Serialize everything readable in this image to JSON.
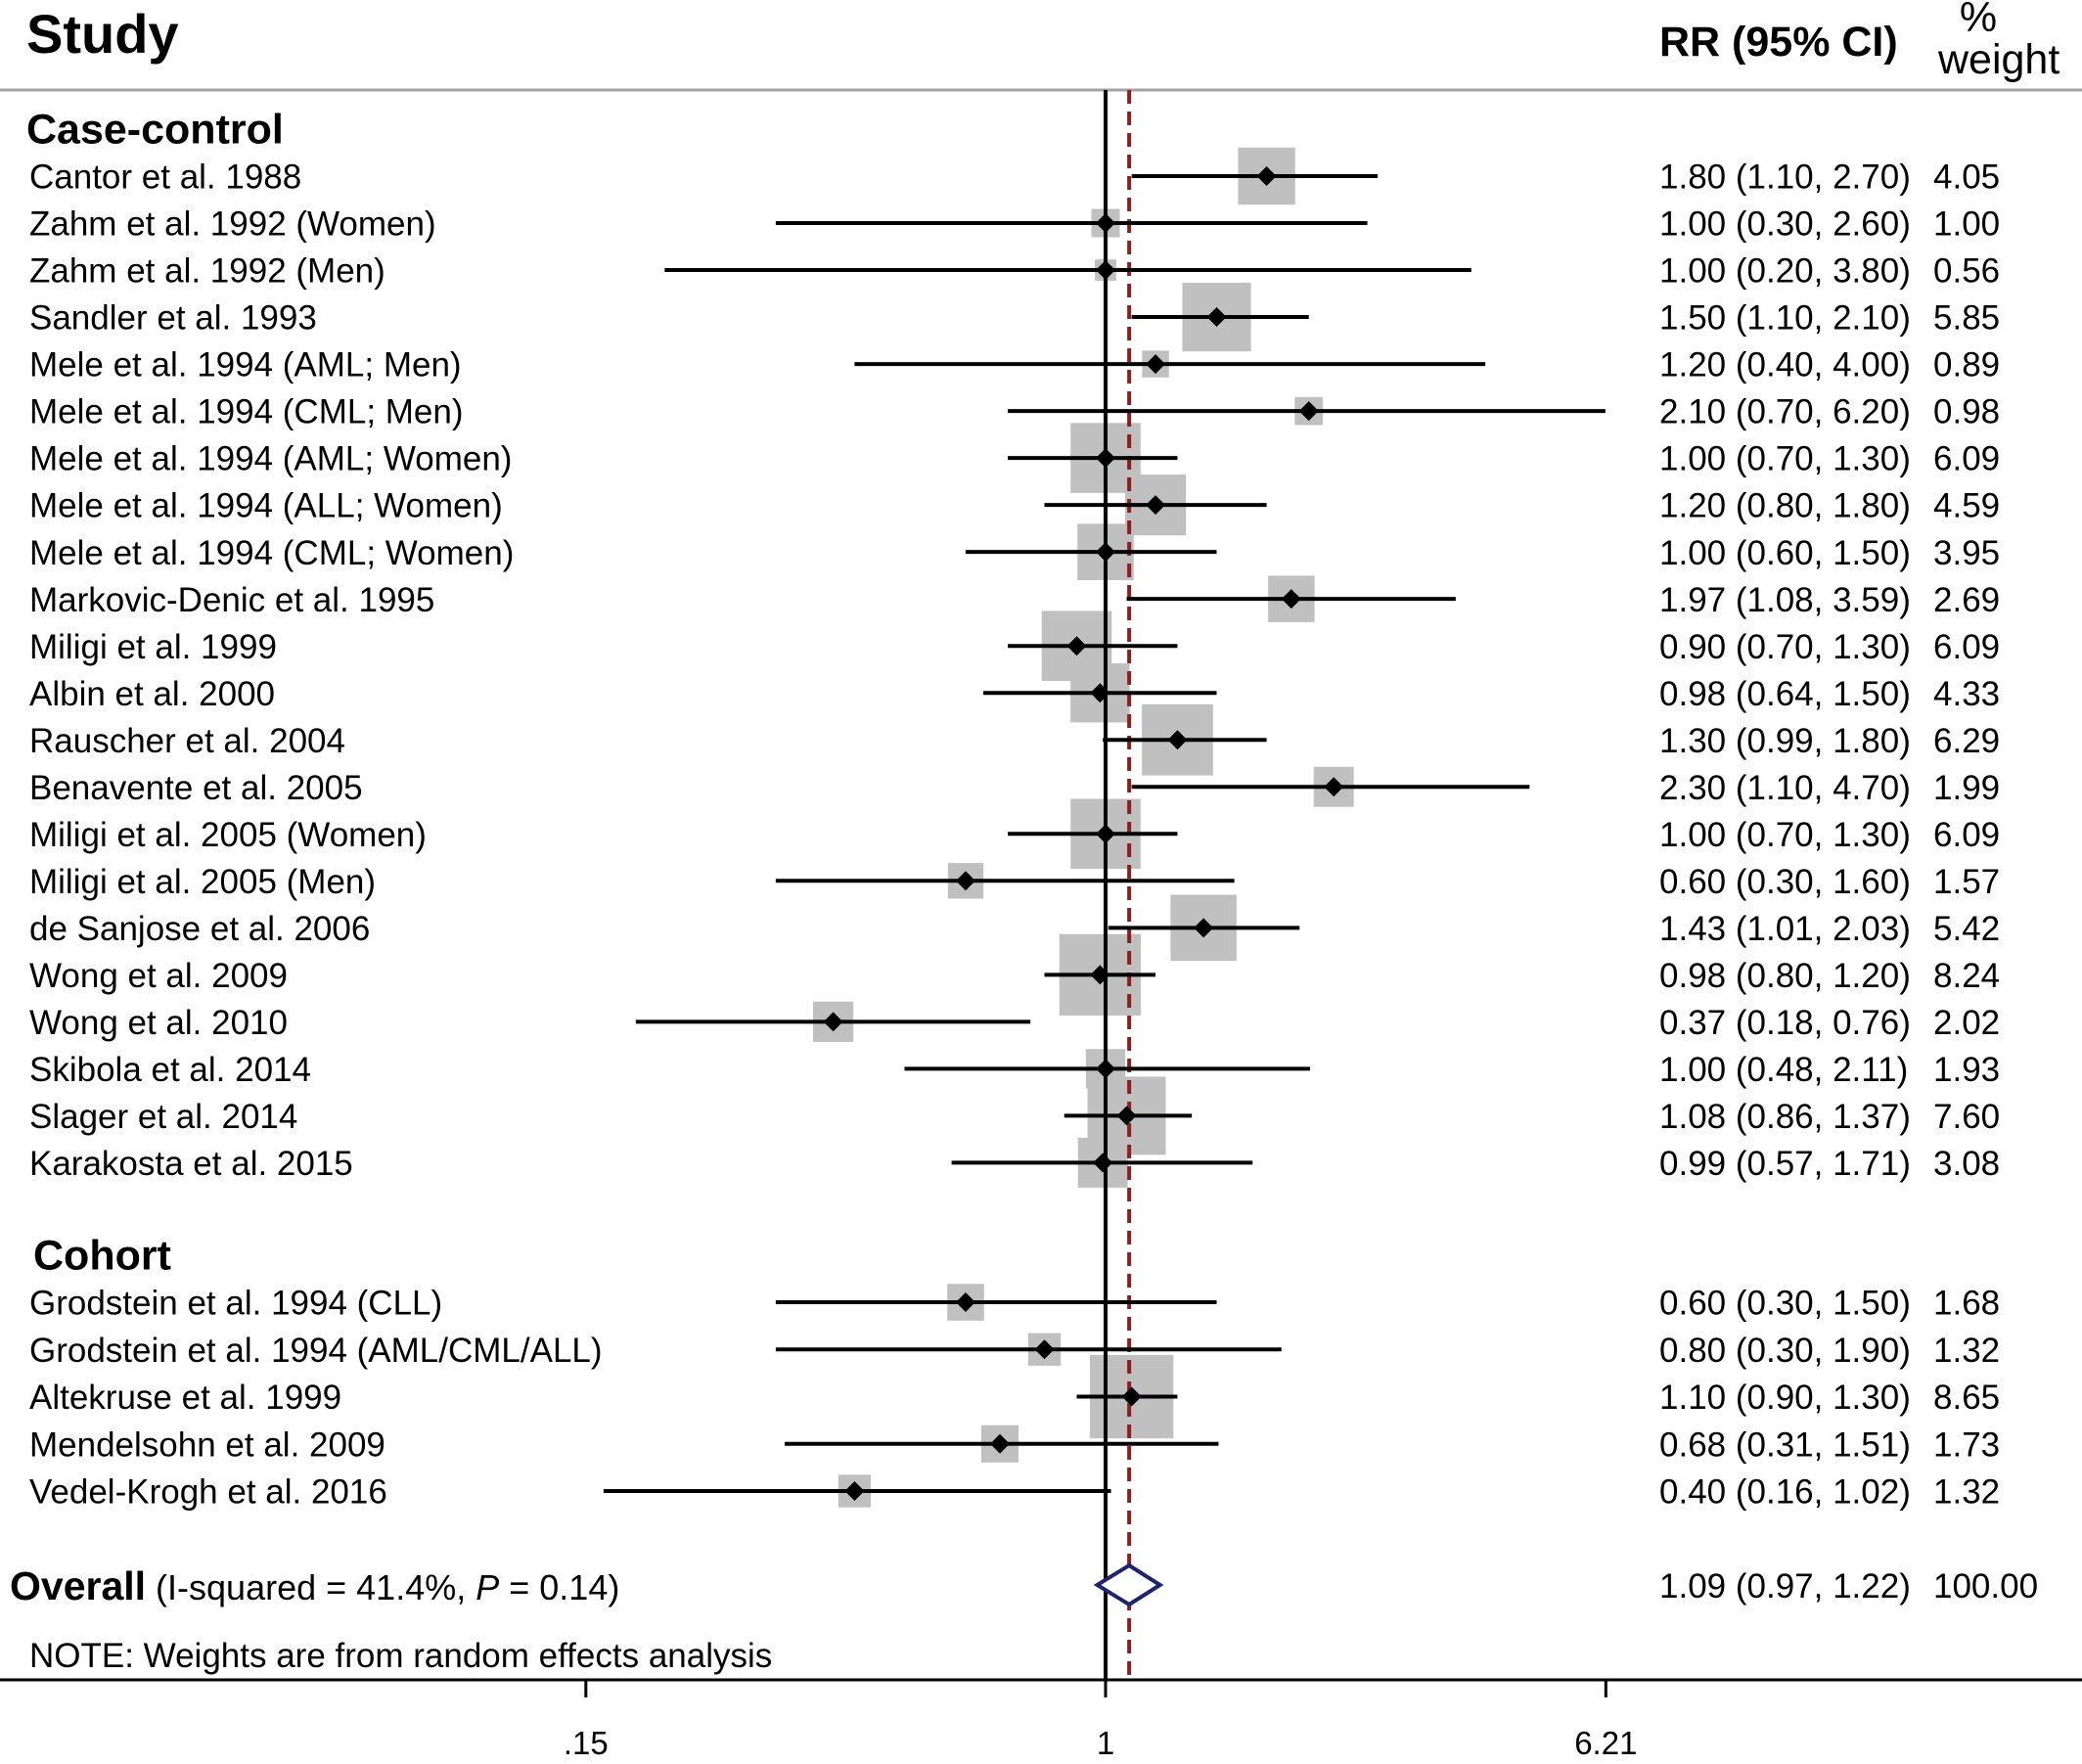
{
  "chart_data": {
    "type": "scatter",
    "xscale": "log",
    "xlim": [
      0.15,
      6.21
    ],
    "xticks": [
      0.15,
      1,
      6.21
    ],
    "xtick_labels": [
      ".15",
      "1",
      "6.21"
    ],
    "grid": false,
    "reference_line": 1,
    "overall_line": 1.09,
    "colors": {
      "weight_box": "#c0c0c0",
      "estimate_marker": "#000000",
      "ci_line": "#000000",
      "null_line": "#000000",
      "overall_line": "#8b1f1f",
      "overall_diamond": "#1f2370"
    },
    "column_headers": {
      "study": "Study",
      "estimate": "RR (95% CI)",
      "weight_line1": "%",
      "weight_line2": "weight"
    },
    "groups": [
      {
        "name": "Case-control",
        "studies": [
          {
            "study": "Cantor et al. 1988",
            "rr": 1.8,
            "ci_lower": 1.1,
            "ci_upper": 2.7,
            "weight": 4.05,
            "rr_ci_label": "1.80 (1.10, 2.70)",
            "weight_label": "4.05"
          },
          {
            "study": "Zahm et al. 1992 (Women)",
            "rr": 1.0,
            "ci_lower": 0.3,
            "ci_upper": 2.6,
            "weight": 1.0,
            "rr_ci_label": "1.00 (0.30, 2.60)",
            "weight_label": "1.00"
          },
          {
            "study": "Zahm et al. 1992 (Men)",
            "rr": 1.0,
            "ci_lower": 0.2,
            "ci_upper": 3.8,
            "weight": 0.56,
            "rr_ci_label": "1.00 (0.20, 3.80)",
            "weight_label": "0.56"
          },
          {
            "study": "Sandler et al. 1993",
            "rr": 1.5,
            "ci_lower": 1.1,
            "ci_upper": 2.1,
            "weight": 5.85,
            "rr_ci_label": "1.50 (1.10, 2.10)",
            "weight_label": "5.85"
          },
          {
            "study": "Mele et al. 1994 (AML; Men)",
            "rr": 1.2,
            "ci_lower": 0.4,
            "ci_upper": 4.0,
            "weight": 0.89,
            "rr_ci_label": "1.20 (0.40, 4.00)",
            "weight_label": "0.89"
          },
          {
            "study": "Mele et al. 1994 (CML; Men)",
            "rr": 2.1,
            "ci_lower": 0.7,
            "ci_upper": 6.2,
            "weight": 0.98,
            "rr_ci_label": "2.10 (0.70, 6.20)",
            "weight_label": "0.98"
          },
          {
            "study": "Mele et al. 1994 (AML; Women)",
            "rr": 1.0,
            "ci_lower": 0.7,
            "ci_upper": 1.3,
            "weight": 6.09,
            "rr_ci_label": "1.00 (0.70, 1.30)",
            "weight_label": "6.09"
          },
          {
            "study": "Mele et al. 1994 (ALL; Women)",
            "rr": 1.2,
            "ci_lower": 0.8,
            "ci_upper": 1.8,
            "weight": 4.59,
            "rr_ci_label": "1.20 (0.80, 1.80)",
            "weight_label": "4.59"
          },
          {
            "study": "Mele et al. 1994 (CML; Women)",
            "rr": 1.0,
            "ci_lower": 0.6,
            "ci_upper": 1.5,
            "weight": 3.95,
            "rr_ci_label": "1.00 (0.60, 1.50)",
            "weight_label": "3.95"
          },
          {
            "study": "Markovic-Denic et al. 1995",
            "rr": 1.97,
            "ci_lower": 1.08,
            "ci_upper": 3.59,
            "weight": 2.69,
            "rr_ci_label": "1.97 (1.08, 3.59)",
            "weight_label": "2.69"
          },
          {
            "study": "Miligi et al. 1999",
            "rr": 0.9,
            "ci_lower": 0.7,
            "ci_upper": 1.3,
            "weight": 6.09,
            "rr_ci_label": "0.90 (0.70, 1.30)",
            "weight_label": "6.09"
          },
          {
            "study": "Albin et al. 2000",
            "rr": 0.98,
            "ci_lower": 0.64,
            "ci_upper": 1.5,
            "weight": 4.33,
            "rr_ci_label": "0.98 (0.64, 1.50)",
            "weight_label": "4.33"
          },
          {
            "study": "Rauscher et al. 2004",
            "rr": 1.3,
            "ci_lower": 0.99,
            "ci_upper": 1.8,
            "weight": 6.29,
            "rr_ci_label": "1.30 (0.99, 1.80)",
            "weight_label": "6.29"
          },
          {
            "study": "Benavente et al. 2005",
            "rr": 2.3,
            "ci_lower": 1.1,
            "ci_upper": 4.7,
            "weight": 1.99,
            "rr_ci_label": "2.30 (1.10, 4.70)",
            "weight_label": "1.99"
          },
          {
            "study": "Miligi et al. 2005 (Women)",
            "rr": 1.0,
            "ci_lower": 0.7,
            "ci_upper": 1.3,
            "weight": 6.09,
            "rr_ci_label": "1.00 (0.70, 1.30)",
            "weight_label": "6.09"
          },
          {
            "study": "Miligi et al. 2005 (Men)",
            "rr": 0.6,
            "ci_lower": 0.3,
            "ci_upper": 1.6,
            "weight": 1.57,
            "rr_ci_label": "0.60 (0.30, 1.60)",
            "weight_label": "1.57"
          },
          {
            "study": "de Sanjose et al. 2006",
            "rr": 1.43,
            "ci_lower": 1.01,
            "ci_upper": 2.03,
            "weight": 5.42,
            "rr_ci_label": "1.43 (1.01, 2.03)",
            "weight_label": "5.42"
          },
          {
            "study": "Wong et al. 2009",
            "rr": 0.98,
            "ci_lower": 0.8,
            "ci_upper": 1.2,
            "weight": 8.24,
            "rr_ci_label": "0.98 (0.80, 1.20)",
            "weight_label": "8.24"
          },
          {
            "study": "Wong et al. 2010",
            "rr": 0.37,
            "ci_lower": 0.18,
            "ci_upper": 0.76,
            "weight": 2.02,
            "rr_ci_label": "0.37 (0.18, 0.76)",
            "weight_label": "2.02"
          },
          {
            "study": "Skibola et al. 2014",
            "rr": 1.0,
            "ci_lower": 0.48,
            "ci_upper": 2.11,
            "weight": 1.93,
            "rr_ci_label": "1.00 (0.48, 2.11)",
            "weight_label": "1.93"
          },
          {
            "study": "Slager et al. 2014",
            "rr": 1.08,
            "ci_lower": 0.86,
            "ci_upper": 1.37,
            "weight": 7.6,
            "rr_ci_label": "1.08 (0.86, 1.37)",
            "weight_label": "7.60"
          },
          {
            "study": "Karakosta et al. 2015",
            "rr": 0.99,
            "ci_lower": 0.57,
            "ci_upper": 1.71,
            "weight": 3.08,
            "rr_ci_label": "0.99 (0.57, 1.71)",
            "weight_label": "3.08"
          }
        ]
      },
      {
        "name": "Cohort",
        "studies": [
          {
            "study": "Grodstein et al. 1994 (CLL)",
            "rr": 0.6,
            "ci_lower": 0.3,
            "ci_upper": 1.5,
            "weight": 1.68,
            "rr_ci_label": "0.60 (0.30, 1.50)",
            "weight_label": "1.68"
          },
          {
            "study": "Grodstein et al. 1994 (AML/CML/ALL)",
            "rr": 0.8,
            "ci_lower": 0.3,
            "ci_upper": 1.9,
            "weight": 1.32,
            "rr_ci_label": "0.80 (0.30, 1.90)",
            "weight_label": "1.32"
          },
          {
            "study": "Altekruse et al. 1999",
            "rr": 1.1,
            "ci_lower": 0.9,
            "ci_upper": 1.3,
            "weight": 8.65,
            "rr_ci_label": "1.10 (0.90, 1.30)",
            "weight_label": "8.65"
          },
          {
            "study": "Mendelsohn et al. 2009",
            "rr": 0.68,
            "ci_lower": 0.31,
            "ci_upper": 1.51,
            "weight": 1.73,
            "rr_ci_label": "0.68 (0.31, 1.51)",
            "weight_label": "1.73"
          },
          {
            "study": "Vedel-Krogh et al. 2016",
            "rr": 0.4,
            "ci_lower": 0.16,
            "ci_upper": 1.02,
            "weight": 1.32,
            "rr_ci_label": "0.40 (0.16, 1.02)",
            "weight_label": "1.32"
          }
        ]
      }
    ],
    "overall": {
      "label": "Overall",
      "heterogeneity_prefix": "(I-squared = 41.4%, ",
      "p_symbol": "P",
      "heterogeneity_suffix": " = 0.14)",
      "rr": 1.09,
      "ci_lower": 0.97,
      "ci_upper": 1.22,
      "rr_ci_label": "1.09 (0.97, 1.22)",
      "weight_label": "100.00"
    },
    "note": "NOTE: Weights are from random effects analysis"
  }
}
